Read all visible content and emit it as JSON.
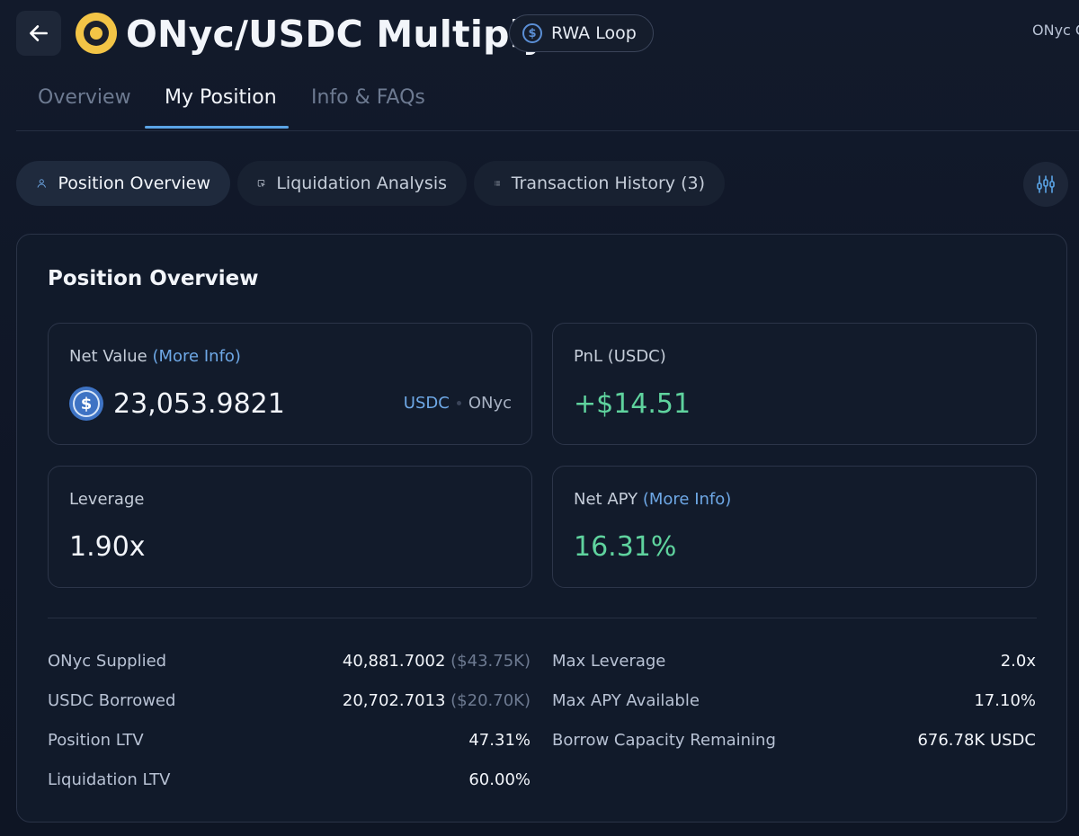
{
  "header": {
    "title": "ONyc/USDC Multiply",
    "badge_label": "RWA Loop",
    "corner_text": "ONyc C"
  },
  "tabs": [
    {
      "label": "Overview"
    },
    {
      "label": "My Position"
    },
    {
      "label": "Info & FAQs"
    }
  ],
  "active_tab": "My Position",
  "subtabs": [
    {
      "label": "Position Overview"
    },
    {
      "label": "Liquidation Analysis"
    },
    {
      "label": "Transaction History (3)"
    }
  ],
  "card": {
    "title": "Position Overview",
    "net_value": {
      "label": "Net Value",
      "more_info": "(More Info)",
      "value": "23,053.9821",
      "toggle": [
        "USDC",
        "ONyc"
      ],
      "toggle_selected": "USDC"
    },
    "pnl": {
      "label": "PnL (USDC)",
      "value": "+$14.51"
    },
    "leverage": {
      "label": "Leverage",
      "value": "1.90x"
    },
    "net_apy": {
      "label": "Net APY",
      "more_info": "(More Info)",
      "value": "16.31%"
    },
    "left_rows": [
      {
        "label": "ONyc Supplied",
        "value": "40,881.7002",
        "sub": "($43.75K)"
      },
      {
        "label": "USDC Borrowed",
        "value": "20,702.7013",
        "sub": "($20.70K)"
      },
      {
        "label": "Position LTV",
        "value": "47.31%"
      },
      {
        "label": "Liquidation LTV",
        "value": "60.00%"
      }
    ],
    "right_rows": [
      {
        "label": "Max Leverage",
        "value": "2.0x"
      },
      {
        "label": "Max APY Available",
        "value": "17.10%"
      },
      {
        "label": "Borrow Capacity Remaining",
        "value": "676.78K USDC"
      }
    ]
  },
  "colors": {
    "accent": "#5aa4e6",
    "positive": "#5fd39e",
    "warning": "#e8a64b",
    "background": "#0f1626"
  },
  "icons": [
    "back-arrow-icon",
    "onyc-logo-icon",
    "dollar-circle-icon",
    "user-icon",
    "cursor-box-icon",
    "list-icon",
    "chart-icon",
    "usdc-coin-icon"
  ]
}
